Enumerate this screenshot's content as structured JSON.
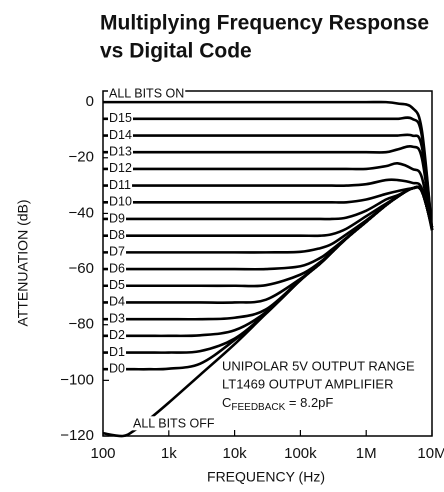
{
  "chart_data": {
    "type": "line",
    "title": [
      "Multiplying Frequency Response",
      "vs Digital Code"
    ],
    "x_label": "FREQUENCY (Hz)",
    "y_label": "ATTENUATION (dB)",
    "xscale": "log",
    "color": "#000000",
    "xlim": [
      100,
      10000000
    ],
    "xticks": [
      100,
      {
        "value": 1000,
        "label": "1k"
      },
      {
        "value": 10000,
        "label": "10k"
      },
      {
        "value": 100000,
        "label": "100k"
      },
      {
        "value": 1000000,
        "label": "1M"
      },
      {
        "value": 10000000,
        "label": "10M"
      }
    ],
    "ylim": [
      -120,
      4
    ],
    "yticks": [
      0,
      {
        "value": -20,
        "label": "−20"
      },
      {
        "value": -40,
        "label": "−40"
      },
      {
        "value": -60,
        "label": "−60"
      },
      {
        "value": -80,
        "label": "−80"
      },
      {
        "value": -100,
        "label": "−100"
      },
      {
        "value": -120,
        "label": "−120"
      }
    ],
    "annotations": [
      "UNIPOLAR 5V OUTPUT RANGE",
      "LT1469 OUTPUT AMPLIFIER",
      {
        "main": "C",
        "sub": "FEEDBACK",
        "rest": " = 8.2pF"
      }
    ],
    "x": [
      100,
      200,
      300,
      500,
      1000,
      3000,
      10000,
      30000,
      100000,
      200000,
      300000,
      500000,
      1000000,
      2000000,
      3000000,
      5000000,
      7000000,
      10000000
    ],
    "series": [
      {
        "name": "ALL BITS ON",
        "values": [
          0,
          0,
          0,
          0,
          0,
          0,
          0,
          0,
          0,
          0,
          0,
          0,
          0,
          0,
          -0.5,
          -2,
          -10,
          -46
        ]
      },
      {
        "name": "D15",
        "values": [
          -6,
          -6,
          -6,
          -6,
          -6,
          -6,
          -6,
          -6,
          -6,
          -6,
          -6,
          -6,
          -6,
          -6,
          -6,
          -6,
          -12,
          -46
        ]
      },
      {
        "name": "D14",
        "values": [
          -12,
          -12,
          -12,
          -12,
          -12,
          -12,
          -12,
          -12,
          -12,
          -12,
          -12,
          -12,
          -12,
          -12,
          -12,
          -12,
          -16,
          -46
        ]
      },
      {
        "name": "D13",
        "values": [
          -18,
          -18,
          -18,
          -18,
          -18,
          -18,
          -18,
          -18,
          -18,
          -18,
          -18,
          -18,
          -18,
          -18,
          -17,
          -16,
          -20,
          -46
        ]
      },
      {
        "name": "D12",
        "values": [
          -24,
          -24,
          -24,
          -24,
          -24,
          -24,
          -24,
          -24,
          -24,
          -24,
          -24,
          -24,
          -24,
          -23,
          -22,
          -24,
          -27,
          -46
        ]
      },
      {
        "name": "D11",
        "values": [
          -30,
          -30,
          -30,
          -30,
          -30,
          -30,
          -30,
          -30,
          -30,
          -30,
          -30,
          -30,
          -29.5,
          -28,
          -28,
          -29,
          -31,
          -46
        ]
      },
      {
        "name": "D10",
        "values": [
          -36,
          -36,
          -36,
          -36,
          -36,
          -36,
          -36,
          -36,
          -36,
          -36,
          -36,
          -36,
          -35,
          -33,
          -32,
          -31,
          -32,
          -45
        ]
      },
      {
        "name": "D9",
        "values": [
          -42,
          -42,
          -42,
          -42,
          -42,
          -42,
          -42,
          -42,
          -42,
          -42,
          -42,
          -41.5,
          -39,
          -35,
          -33.5,
          -31,
          -32,
          -45
        ]
      },
      {
        "name": "D8",
        "values": [
          -48,
          -48,
          -48,
          -48,
          -48,
          -48,
          -48,
          -48,
          -48,
          -48,
          -47.5,
          -45.5,
          -41,
          -36.5,
          -34,
          -31,
          -32,
          -45
        ]
      },
      {
        "name": "D7",
        "values": [
          -54,
          -54,
          -54,
          -54,
          -54,
          -54,
          -54,
          -54,
          -53.8,
          -52.5,
          -51,
          -47.5,
          -42.5,
          -37,
          -34,
          -31,
          -32,
          -45
        ]
      },
      {
        "name": "D6",
        "values": [
          -60,
          -60,
          -60,
          -60,
          -60,
          -60,
          -60,
          -60,
          -59,
          -56,
          -53,
          -48.8,
          -43,
          -37,
          -34,
          -31,
          -32,
          -45
        ]
      },
      {
        "name": "D5",
        "values": [
          -66,
          -66,
          -66,
          -66,
          -66,
          -66,
          -66,
          -65.8,
          -62,
          -57.5,
          -53.8,
          -49,
          -43,
          -37,
          -34,
          -31,
          -32,
          -45
        ]
      },
      {
        "name": "D4",
        "values": [
          -72,
          -72,
          -72,
          -72,
          -72,
          -72,
          -72,
          -71,
          -63.5,
          -58,
          -54,
          -49,
          -43,
          -37,
          -34,
          -31,
          -32,
          -45
        ]
      },
      {
        "name": "D3",
        "values": [
          -78,
          -78,
          -78,
          -78,
          -78,
          -78,
          -77.5,
          -74.5,
          -63.8,
          -58,
          -54,
          -49,
          -43,
          -37,
          -34,
          -31,
          -32,
          -45
        ]
      },
      {
        "name": "D2",
        "values": [
          -84,
          -84,
          -84,
          -84,
          -84,
          -83.8,
          -82,
          -75.5,
          -64,
          -58,
          -54,
          -49,
          -43,
          -37,
          -34,
          -31,
          -32,
          -45
        ]
      },
      {
        "name": "D1",
        "values": [
          -90,
          -90,
          -90,
          -90,
          -90,
          -89.5,
          -85,
          -75.8,
          -64,
          -58,
          -54,
          -49,
          -43,
          -37,
          -34,
          -31,
          -32,
          -45
        ]
      },
      {
        "name": "D0",
        "values": [
          -96,
          -96,
          -96,
          -96,
          -95.8,
          -94,
          -85.5,
          -76,
          -64,
          -58,
          -54,
          -49,
          -43,
          -37,
          -34,
          -31,
          -32,
          -45
        ]
      },
      {
        "name": "ALL BITS OFF",
        "values": [
          -119,
          -120,
          -118,
          -114,
          -108,
          -98,
          -87,
          -76,
          -64,
          -58,
          -54,
          -49,
          -43,
          -37,
          -34,
          -31,
          -32,
          -45
        ]
      }
    ]
  }
}
